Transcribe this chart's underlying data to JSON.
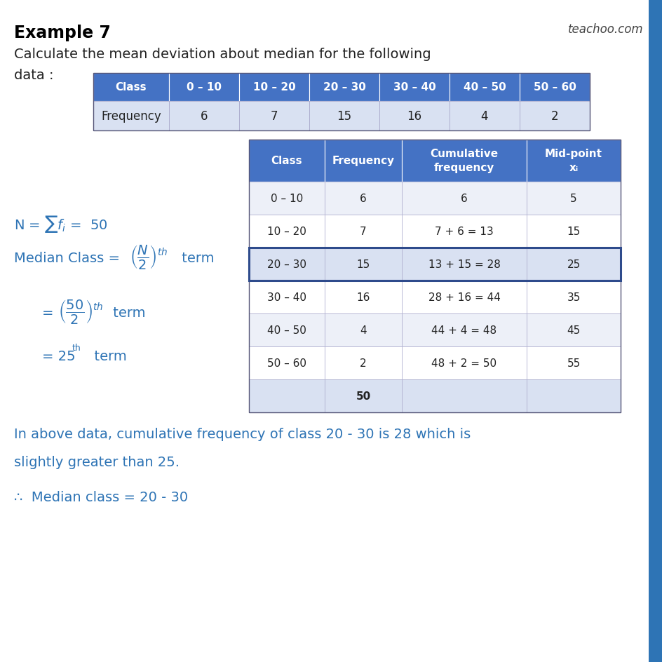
{
  "title": "Example 7",
  "watermark": "teachoo.com",
  "subtitle_line1": "Calculate the mean deviation about median for the following",
  "subtitle_line2": "data :",
  "bg_color": "#ffffff",
  "text_color_blue": "#2E74B5",
  "header_bg": "#4472C4",
  "header_text": "#ffffff",
  "row_bg_light": "#D9E1F2",
  "table1_headers": [
    "Class",
    "0 – 10",
    "10 – 20",
    "20 – 30",
    "30 – 40",
    "40 – 50",
    "50 – 60"
  ],
  "table1_row": [
    "Frequency",
    "6",
    "7",
    "15",
    "16",
    "4",
    "2"
  ],
  "table2_headers": [
    "Class",
    "Frequency",
    "Cumulative\nfrequency",
    "Mid-point\nxᵢ"
  ],
  "table2_rows": [
    [
      "0 – 10",
      "6",
      "6",
      "5"
    ],
    [
      "10 – 20",
      "7",
      "7 + 6 = 13",
      "15"
    ],
    [
      "20 – 30",
      "15",
      "13 + 15 = 28",
      "25"
    ],
    [
      "30 – 40",
      "16",
      "28 + 16 = 44",
      "35"
    ],
    [
      "40 – 50",
      "4",
      "44 + 4 = 48",
      "45"
    ],
    [
      "50 – 60",
      "2",
      "48 + 2 = 50",
      "55"
    ],
    [
      "",
      "50",
      "",
      ""
    ]
  ],
  "highlighted_row_index": 2,
  "right_bar_color": "#2E74B5",
  "note_line1": "In above data, cumulative frequency of class 20 - 30 is 28 which is",
  "note_line2": "slightly greater than 25.",
  "note_line3": "∴  Median class = 20 - 30"
}
